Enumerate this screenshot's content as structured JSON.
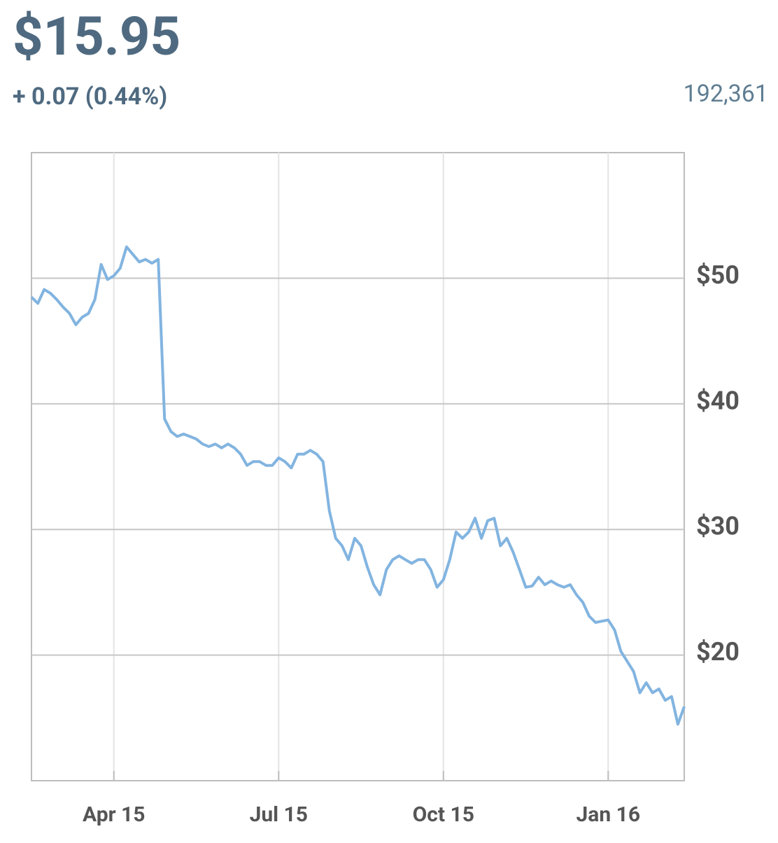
{
  "header": {
    "price": "$15.95",
    "change": "+ 0.07 (0.44%)",
    "volume": "192,361"
  },
  "chart_data": {
    "type": "line",
    "color": "#82b4e0",
    "grid": true,
    "categories": [
      null,
      null,
      null,
      null,
      null,
      null,
      null,
      null,
      null,
      null,
      null,
      null,
      null,
      "Apr 15",
      null,
      null,
      null,
      null,
      null,
      null,
      null,
      null,
      null,
      null,
      null,
      null,
      null,
      null,
      null,
      null,
      null,
      null,
      null,
      null,
      null,
      null,
      null,
      null,
      null,
      "Jul 15",
      null,
      null,
      null,
      null,
      null,
      null,
      null,
      null,
      null,
      null,
      null,
      null,
      null,
      null,
      null,
      null,
      null,
      null,
      null,
      null,
      null,
      null,
      null,
      null,
      null,
      "Oct 15",
      null,
      null,
      null,
      null,
      null,
      null,
      null,
      null,
      null,
      null,
      null,
      null,
      null,
      null,
      null,
      null,
      null,
      null,
      null,
      null,
      null,
      null,
      null,
      null,
      null,
      "Jan 16",
      null,
      null,
      null,
      null,
      null,
      null,
      null,
      null,
      null,
      null,
      null,
      null
    ],
    "values": [
      48.5,
      48.0,
      49.1,
      48.8,
      48.3,
      47.7,
      47.2,
      46.3,
      46.9,
      47.2,
      48.3,
      51.1,
      49.9,
      50.2,
      50.8,
      52.5,
      51.9,
      51.3,
      51.5,
      51.2,
      51.5,
      38.8,
      37.8,
      37.4,
      37.6,
      37.4,
      37.2,
      36.8,
      36.6,
      36.8,
      36.5,
      36.8,
      36.5,
      36.0,
      35.1,
      35.4,
      35.4,
      35.1,
      35.1,
      35.7,
      35.4,
      34.9,
      36.0,
      36.0,
      36.3,
      36.0,
      35.4,
      31.5,
      29.3,
      28.7,
      27.6,
      29.3,
      28.7,
      27.0,
      25.6,
      24.8,
      26.8,
      27.6,
      27.9,
      27.6,
      27.3,
      27.6,
      27.6,
      26.8,
      25.4,
      26.0,
      27.6,
      29.8,
      29.3,
      29.8,
      30.9,
      29.3,
      30.7,
      30.9,
      28.7,
      29.3,
      28.2,
      26.8,
      25.4,
      25.5,
      26.2,
      25.6,
      25.9,
      25.6,
      25.4,
      25.6,
      24.8,
      24.2,
      23.1,
      22.6,
      22.7,
      22.8,
      22.0,
      20.3,
      19.5,
      18.7,
      17.0,
      17.8,
      17.0,
      17.3,
      16.4,
      16.7,
      14.5,
      15.9
    ],
    "ylim": [
      10,
      60
    ],
    "yticks": [
      {
        "value": 20,
        "label": "$20"
      },
      {
        "value": 30,
        "label": "$30"
      },
      {
        "value": 40,
        "label": "$40"
      },
      {
        "value": 50,
        "label": "$50"
      }
    ]
  }
}
